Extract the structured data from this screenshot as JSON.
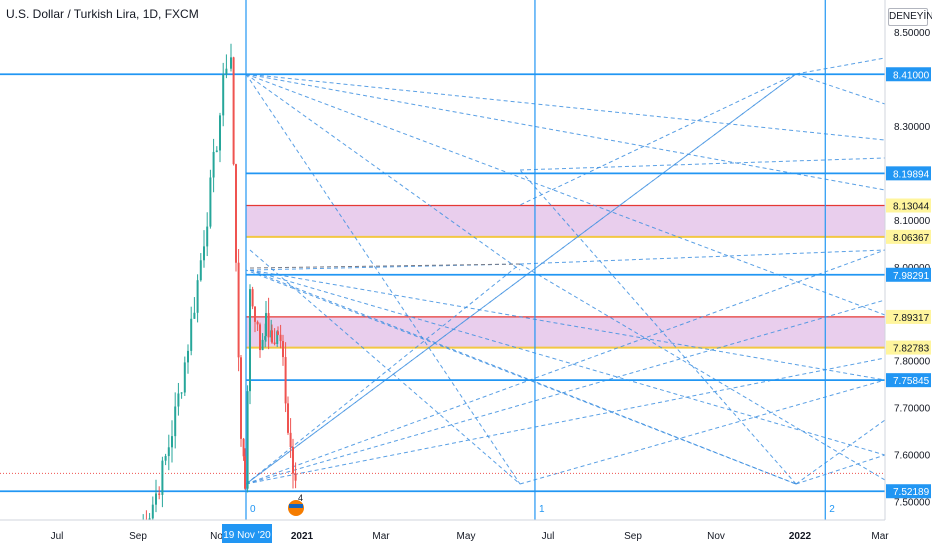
{
  "header": {
    "symbol_title": "U.S. Dollar / Turkish Lira, 1D, FXCM",
    "mode_badge": "DENEYİN"
  },
  "colors": {
    "hline": "#2196f3",
    "fan": "#3d8fe0",
    "zone_fill": "#e1bee7",
    "zone_border_top": "#e53935",
    "zone_border_bottom": "#f2c744",
    "label_yellow": "#fff59d",
    "candle_up": "#26a69a",
    "candle_down": "#ef5350",
    "axis_text": "#131722",
    "price_line_red": "#ef5350"
  },
  "cursor_label": "19 Nov '20",
  "cycle_labels": [
    "0",
    "1",
    "2"
  ],
  "price_line_badge": "4",
  "chart_data": {
    "type": "candlestick",
    "title": "U.S. Dollar / Turkish Lira, 1D, FXCM",
    "xlabel": "",
    "ylabel": "",
    "x_ticks": [
      "Jul",
      "Sep",
      "Nov",
      "2021",
      "Mar",
      "May",
      "Jul",
      "Sep",
      "Nov",
      "2022",
      "Mar"
    ],
    "x_ticks_bold": [
      "2021",
      "2022"
    ],
    "y_ticks": [
      "8.50000",
      "8.30000",
      "8.10000",
      "8.00000",
      "7.80000",
      "7.70000",
      "7.60000",
      "7.50000"
    ],
    "ylim": [
      7.48,
      8.52
    ],
    "horizontal_levels": [
      "8.41000",
      "8.19894",
      "7.98291",
      "7.75845",
      "7.52189"
    ],
    "zones": [
      {
        "top": "8.13044",
        "bottom": "8.06367"
      },
      {
        "top": "7.89317",
        "bottom": "7.82783"
      }
    ],
    "vertical_cycles": [
      {
        "label": "0",
        "x": "2020-11-19"
      },
      {
        "label": "1",
        "x": "2021-06-20"
      },
      {
        "label": "2",
        "x": "2022-01-20"
      }
    ],
    "recent_prices": [
      {
        "date": "2020-11-01",
        "value": 8.3
      },
      {
        "date": "2020-11-06",
        "value": 8.5
      },
      {
        "date": "2020-11-09",
        "value": 8.1
      },
      {
        "date": "2020-11-13",
        "value": 7.65
      },
      {
        "date": "2020-11-19",
        "value": 7.55
      },
      {
        "date": "2020-11-23",
        "value": 7.98
      },
      {
        "date": "2020-11-30",
        "value": 7.82
      },
      {
        "date": "2020-12-07",
        "value": 7.85
      },
      {
        "date": "2020-12-11",
        "value": 7.75
      },
      {
        "date": "2020-12-17",
        "value": 7.6
      },
      {
        "date": "2020-12-19",
        "value": 7.56
      }
    ],
    "grid": false
  }
}
